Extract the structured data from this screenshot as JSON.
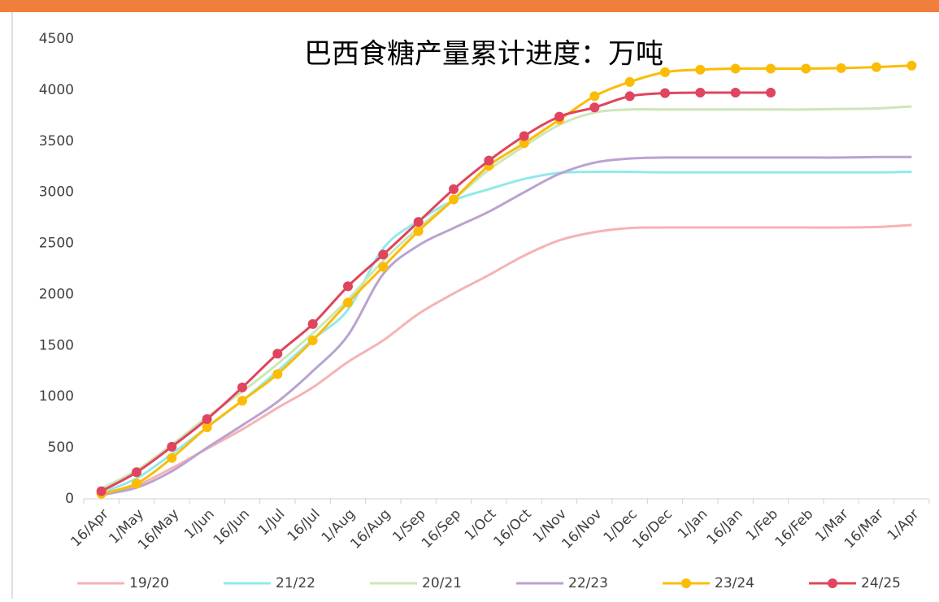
{
  "chart_data": {
    "type": "line",
    "title": "巴西食糖产量累计进度：万吨",
    "categories": [
      "16/Apr",
      "1/May",
      "16/May",
      "1/Jun",
      "16/Jun",
      "1/Jul",
      "16/Jul",
      "1/Aug",
      "16/Aug",
      "1/Sep",
      "16/Sep",
      "1/Oct",
      "16/Oct",
      "1/Nov",
      "16/Nov",
      "1/Dec",
      "16/Dec",
      "1/Jan",
      "16/Jan",
      "1/Feb",
      "16/Feb",
      "1/Mar",
      "16/Mar",
      "1/Apr"
    ],
    "ylim": [
      0,
      4500
    ],
    "yticks": [
      0,
      500,
      1000,
      1500,
      2000,
      2500,
      3000,
      3500,
      4000,
      4500
    ],
    "grid": false,
    "legend": "bottom",
    "series": [
      {
        "name": "19/20",
        "color": "#f5b3b3",
        "markers": false,
        "values": [
          30,
          130,
          300,
          490,
          680,
          890,
          1090,
          1340,
          1550,
          1810,
          2010,
          2190,
          2380,
          2530,
          2610,
          2650,
          2655,
          2655,
          2655,
          2655,
          2655,
          2655,
          2660,
          2680
        ]
      },
      {
        "name": "21/22",
        "color": "#92e9e9",
        "markers": false,
        "values": [
          60,
          200,
          440,
          700,
          960,
          1250,
          1560,
          1850,
          2450,
          2720,
          2920,
          3030,
          3130,
          3190,
          3200,
          3200,
          3195,
          3195,
          3195,
          3195,
          3195,
          3195,
          3195,
          3200
        ]
      },
      {
        "name": "20/21",
        "color": "#cde6b8",
        "markers": false,
        "values": [
          100,
          280,
          530,
          800,
          1050,
          1320,
          1620,
          1950,
          2330,
          2650,
          2930,
          3220,
          3450,
          3660,
          3780,
          3810,
          3810,
          3810,
          3810,
          3810,
          3810,
          3815,
          3820,
          3840
        ]
      },
      {
        "name": "22/23",
        "color": "#b9a3d1",
        "markers": false,
        "values": [
          40,
          110,
          270,
          500,
          720,
          950,
          1250,
          1600,
          2200,
          2480,
          2650,
          2810,
          3000,
          3180,
          3290,
          3330,
          3340,
          3340,
          3340,
          3340,
          3340,
          3340,
          3345,
          3345
        ]
      },
      {
        "name": "23/24",
        "color": "#fbbc05",
        "markers": true,
        "values": [
          50,
          150,
          400,
          700,
          960,
          1220,
          1550,
          1920,
          2270,
          2620,
          2930,
          3260,
          3480,
          3710,
          3940,
          4080,
          4175,
          4200,
          4210,
          4210,
          4210,
          4215,
          4225,
          4240
        ]
      },
      {
        "name": "24/25",
        "color": "#e0445e",
        "markers": true,
        "values": [
          75,
          260,
          510,
          780,
          1090,
          1420,
          1710,
          2080,
          2390,
          2710,
          3030,
          3310,
          3550,
          3740,
          3830,
          3940,
          3970,
          3975,
          3975,
          3975,
          null,
          null,
          null,
          null
        ]
      }
    ]
  }
}
